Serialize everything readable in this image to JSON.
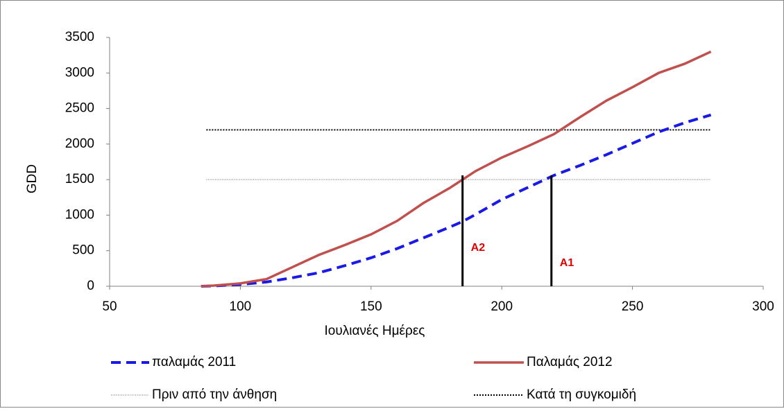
{
  "chart_data": {
    "type": "line",
    "x_label": "Ιουλιανές Ημέρες",
    "y_label": "GDD",
    "x": [
      85,
      90,
      100,
      110,
      120,
      130,
      140,
      150,
      160,
      170,
      180,
      185,
      190,
      200,
      210,
      220,
      230,
      240,
      250,
      260,
      270,
      280
    ],
    "series": [
      {
        "name": "παλαμάς 2011",
        "color": "#1a1ae6",
        "dash": true,
        "values": [
          0,
          5,
          25,
          60,
          120,
          190,
          290,
          400,
          530,
          680,
          830,
          910,
          1010,
          1220,
          1390,
          1560,
          1700,
          1850,
          2010,
          2170,
          2300,
          2410
        ]
      },
      {
        "name": "Παλαμάς 2012",
        "color": "#c0504d",
        "dash": false,
        "values": [
          0,
          10,
          40,
          100,
          270,
          440,
          580,
          730,
          920,
          1170,
          1380,
          1500,
          1620,
          1810,
          1970,
          2140,
          2380,
          2610,
          2800,
          3000,
          3130,
          3300
        ]
      }
    ],
    "reference_lines": [
      {
        "name": "Πριν από την άνθηση",
        "y": 1500,
        "x_range": [
          87,
          280
        ],
        "color": "#808080"
      },
      {
        "name": "Κατά τη συγκομιδή",
        "y": 2200,
        "x_range": [
          87,
          280
        ],
        "color": "#000000"
      }
    ],
    "vertical_lines": [
      {
        "label": "A2",
        "x": 185,
        "y_range": [
          0,
          1560
        ]
      },
      {
        "label": "A1",
        "x": 219,
        "y_range": [
          0,
          1560
        ]
      }
    ],
    "xlim": [
      50,
      300
    ],
    "xticks": [
      50,
      100,
      150,
      200,
      250,
      300
    ],
    "ylim": [
      0,
      3500
    ],
    "yticks": [
      0,
      500,
      1000,
      1500,
      2000,
      2500,
      3000,
      3500
    ]
  }
}
